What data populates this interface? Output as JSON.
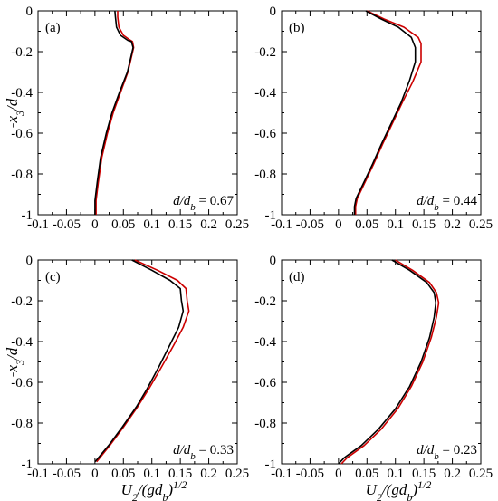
{
  "figure": {
    "ylabel_main": "-x",
    "ylabel_sub": "3",
    "ylabel_rest": "/d",
    "xlabel_main": "U",
    "xlabel_sub": "2",
    "xlabel_mid": "/(gd",
    "xlabel_sub2": "b",
    "xlabel_close": ")",
    "xlabel_sup": "1/2",
    "ratio_prefix": "d/d",
    "ratio_sub": "b",
    "ratio_eq": " = "
  },
  "colors": {
    "series_1": "#cc0000",
    "series_2": "#000000",
    "axis": "#000000"
  },
  "chart_data": [
    {
      "type": "line",
      "panel": "(a)",
      "ratio": "0.67",
      "xlim": [
        -0.1,
        0.25
      ],
      "ylim": [
        -1,
        0
      ],
      "xticks": [
        "-0.1",
        "-0.05",
        "0",
        "0.05",
        "0.1",
        "0.15",
        "0.2",
        "0.25"
      ],
      "yticks": [
        "0",
        "-0.2",
        "-0.4",
        "-0.6",
        "-0.8",
        "-1"
      ],
      "series": [
        {
          "color": "#cc0000",
          "points": [
            [
              0.04,
              0
            ],
            [
              0.04,
              -0.03
            ],
            [
              0.042,
              -0.08
            ],
            [
              0.05,
              -0.12
            ],
            [
              0.06,
              -0.14
            ],
            [
              0.066,
              -0.15
            ],
            [
              0.068,
              -0.18
            ],
            [
              0.058,
              -0.3
            ],
            [
              0.045,
              -0.4
            ],
            [
              0.032,
              -0.5
            ],
            [
              0.022,
              -0.6
            ],
            [
              0.012,
              -0.72
            ],
            [
              0.006,
              -0.84
            ],
            [
              0.002,
              -0.93
            ],
            [
              0.002,
              -1
            ]
          ]
        },
        {
          "color": "#000000",
          "points": [
            [
              0.035,
              0
            ],
            [
              0.036,
              -0.03
            ],
            [
              0.038,
              -0.08
            ],
            [
              0.045,
              -0.12
            ],
            [
              0.058,
              -0.145
            ],
            [
              0.064,
              -0.15
            ],
            [
              0.067,
              -0.18
            ],
            [
              0.057,
              -0.3
            ],
            [
              0.043,
              -0.4
            ],
            [
              0.03,
              -0.5
            ],
            [
              0.02,
              -0.6
            ],
            [
              0.01,
              -0.72
            ],
            [
              0.004,
              -0.84
            ],
            [
              0.0,
              -0.93
            ],
            [
              0.0,
              -1
            ]
          ]
        }
      ]
    },
    {
      "type": "line",
      "panel": "(b)",
      "ratio": "0.44",
      "xlim": [
        -0.1,
        0.25
      ],
      "ylim": [
        -1,
        0
      ],
      "xticks": [
        "-0.1",
        "-0.05",
        "0",
        "0.05",
        "0.1",
        "0.15",
        "0.2",
        "0.25"
      ],
      "yticks": [
        "0",
        "-0.2",
        "-0.4",
        "-0.6",
        "-0.8",
        "-1"
      ],
      "series": [
        {
          "color": "#cc0000",
          "points": [
            [
              0.05,
              0
            ],
            [
              0.08,
              -0.04
            ],
            [
              0.115,
              -0.08
            ],
            [
              0.14,
              -0.13
            ],
            [
              0.145,
              -0.16
            ],
            [
              0.145,
              -0.25
            ],
            [
              0.13,
              -0.35
            ],
            [
              0.112,
              -0.45
            ],
            [
              0.095,
              -0.55
            ],
            [
              0.078,
              -0.65
            ],
            [
              0.062,
              -0.75
            ],
            [
              0.045,
              -0.85
            ],
            [
              0.033,
              -0.92
            ],
            [
              0.03,
              -0.96
            ],
            [
              0.03,
              -1
            ]
          ]
        },
        {
          "color": "#000000",
          "points": [
            [
              0.048,
              0
            ],
            [
              0.075,
              -0.04
            ],
            [
              0.105,
              -0.08
            ],
            [
              0.128,
              -0.13
            ],
            [
              0.135,
              -0.18
            ],
            [
              0.135,
              -0.25
            ],
            [
              0.125,
              -0.34
            ],
            [
              0.11,
              -0.45
            ],
            [
              0.093,
              -0.55
            ],
            [
              0.076,
              -0.65
            ],
            [
              0.06,
              -0.75
            ],
            [
              0.043,
              -0.85
            ],
            [
              0.031,
              -0.92
            ],
            [
              0.028,
              -0.96
            ],
            [
              0.028,
              -1
            ]
          ]
        }
      ]
    },
    {
      "type": "line",
      "panel": "(c)",
      "ratio": "0.33",
      "xlim": [
        -0.1,
        0.25
      ],
      "ylim": [
        -1,
        0
      ],
      "xticks": [
        "-0.1",
        "-0.05",
        "0",
        "0.05",
        "0.1",
        "0.15",
        "0.2",
        "0.25"
      ],
      "yticks": [
        "0",
        "-0.2",
        "-0.4",
        "-0.6",
        "-0.8",
        "-1"
      ],
      "series": [
        {
          "color": "#cc0000",
          "points": [
            [
              0.07,
              0
            ],
            [
              0.11,
              -0.05
            ],
            [
              0.145,
              -0.1
            ],
            [
              0.16,
              -0.14
            ],
            [
              0.162,
              -0.2
            ],
            [
              0.165,
              -0.25
            ],
            [
              0.155,
              -0.33
            ],
            [
              0.138,
              -0.42
            ],
            [
              0.118,
              -0.52
            ],
            [
              0.095,
              -0.63
            ],
            [
              0.075,
              -0.72
            ],
            [
              0.05,
              -0.82
            ],
            [
              0.026,
              -0.91
            ],
            [
              0.003,
              -0.99
            ]
          ]
        },
        {
          "color": "#000000",
          "points": [
            [
              0.065,
              0
            ],
            [
              0.1,
              -0.05
            ],
            [
              0.132,
              -0.1
            ],
            [
              0.15,
              -0.14
            ],
            [
              0.152,
              -0.2
            ],
            [
              0.155,
              -0.25
            ],
            [
              0.147,
              -0.33
            ],
            [
              0.131,
              -0.42
            ],
            [
              0.113,
              -0.52
            ],
            [
              0.092,
              -0.63
            ],
            [
              0.073,
              -0.72
            ],
            [
              0.048,
              -0.82
            ],
            [
              0.024,
              -0.91
            ],
            [
              0.0,
              -0.99
            ]
          ]
        }
      ]
    },
    {
      "type": "line",
      "panel": "(d)",
      "ratio": "0.23",
      "xlim": [
        -0.1,
        0.25
      ],
      "ylim": [
        -1,
        0
      ],
      "xticks": [
        "-0.1",
        "-0.05",
        "0",
        "0.05",
        "0.1",
        "0.15",
        "0.2",
        "0.25"
      ],
      "yticks": [
        "0",
        "-0.2",
        "-0.4",
        "-0.6",
        "-0.8",
        "-1"
      ],
      "series": [
        {
          "color": "#cc0000",
          "points": [
            [
              0.1,
              0
            ],
            [
              0.13,
              -0.05
            ],
            [
              0.16,
              -0.11
            ],
            [
              0.172,
              -0.16
            ],
            [
              0.176,
              -0.21
            ],
            [
              0.172,
              -0.28
            ],
            [
              0.163,
              -0.38
            ],
            [
              0.148,
              -0.5
            ],
            [
              0.128,
              -0.62
            ],
            [
              0.104,
              -0.73
            ],
            [
              0.075,
              -0.83
            ],
            [
              0.045,
              -0.91
            ],
            [
              0.015,
              -0.97
            ],
            [
              0.005,
              -1
            ]
          ]
        },
        {
          "color": "#000000",
          "points": [
            [
              0.094,
              0
            ],
            [
              0.125,
              -0.05
            ],
            [
              0.155,
              -0.11
            ],
            [
              0.168,
              -0.16
            ],
            [
              0.171,
              -0.21
            ],
            [
              0.168,
              -0.28
            ],
            [
              0.16,
              -0.38
            ],
            [
              0.145,
              -0.5
            ],
            [
              0.125,
              -0.62
            ],
            [
              0.1,
              -0.73
            ],
            [
              0.07,
              -0.83
            ],
            [
              0.04,
              -0.91
            ],
            [
              0.01,
              -0.97
            ],
            [
              0.0,
              -1
            ]
          ]
        }
      ]
    }
  ]
}
